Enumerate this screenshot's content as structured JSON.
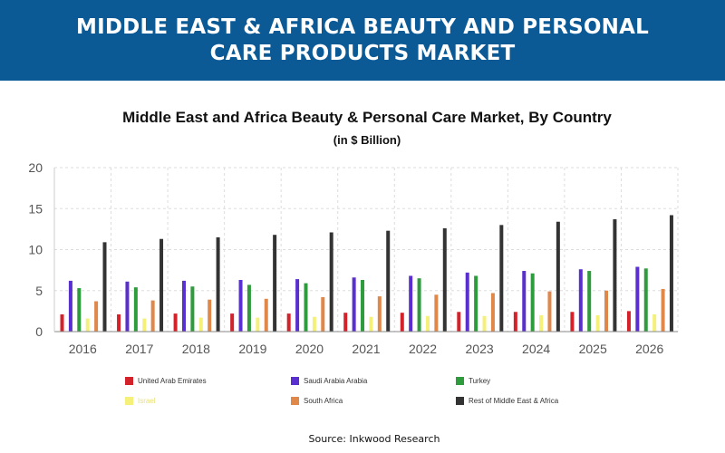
{
  "banner": {
    "title": "MIDDLE EAST & AFRICA  BEAUTY AND PERSONAL CARE PRODUCTS MARKET"
  },
  "source": "Source: Inkwood Research",
  "chart_data": {
    "type": "bar",
    "title": "Middle East and Africa Beauty & Personal Care Market, By Country",
    "subtitle": "(in $ Billion)",
    "xlabel": "",
    "ylabel": "",
    "ylim": [
      0,
      20
    ],
    "yticks": [
      0,
      5,
      10,
      15,
      20
    ],
    "grid": true,
    "legend_position": "bottom",
    "categories": [
      "2016",
      "2017",
      "2018",
      "2019",
      "2020",
      "2021",
      "2022",
      "2023",
      "2024",
      "2025",
      "2026"
    ],
    "series": [
      {
        "name": "United Arab Emirates",
        "color": "#d4222b",
        "values": [
          2.1,
          2.1,
          2.2,
          2.2,
          2.2,
          2.3,
          2.3,
          2.4,
          2.4,
          2.4,
          2.5
        ]
      },
      {
        "name": "Saudi Arabia Arabia",
        "color": "#5a2fd0",
        "values": [
          6.2,
          6.1,
          6.2,
          6.3,
          6.4,
          6.6,
          6.8,
          7.2,
          7.4,
          7.6,
          7.9
        ]
      },
      {
        "name": "Turkey",
        "color": "#2e9b3d",
        "values": [
          5.3,
          5.4,
          5.5,
          5.7,
          5.9,
          6.3,
          6.5,
          6.8,
          7.1,
          7.4,
          7.7
        ]
      },
      {
        "name": "Israel",
        "color": "#f5f07a",
        "values": [
          1.6,
          1.6,
          1.7,
          1.7,
          1.8,
          1.8,
          1.9,
          1.9,
          2.0,
          2.0,
          2.1
        ]
      },
      {
        "name": "South Africa",
        "color": "#e0874a",
        "values": [
          3.7,
          3.8,
          3.9,
          4.0,
          4.2,
          4.3,
          4.5,
          4.7,
          4.9,
          5.0,
          5.2
        ]
      },
      {
        "name": "Rest of Middle East & Africa",
        "color": "#333333",
        "values": [
          10.9,
          11.3,
          11.5,
          11.8,
          12.1,
          12.3,
          12.6,
          13.0,
          13.4,
          13.7,
          14.2
        ]
      }
    ]
  }
}
